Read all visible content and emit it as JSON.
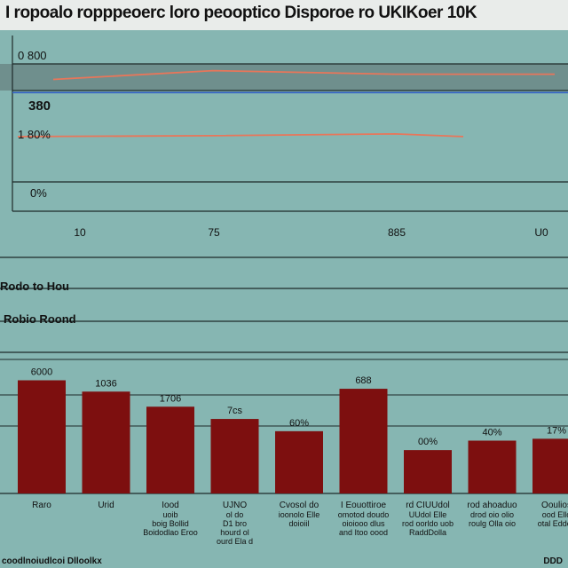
{
  "page_title": "I ropoalo ropppeoerc loro peooptico Disporoe ro UKIKoer 10K",
  "colors": {
    "background": "#86b6b2",
    "title_band": "#e9ecea",
    "top_band": "#6f8f8d",
    "orange_line": "#e8765a",
    "blue_line": "#2f5dc4",
    "bar": "#7d0f0f",
    "grid": "#1e2a2a"
  },
  "chart_data": [
    {
      "type": "line",
      "title": "",
      "x": [
        "10",
        "75",
        "885",
        "U0"
      ],
      "y_tick_labels": [
        "0 800",
        "1 80%",
        "0%"
      ],
      "series": [
        {
          "values": [
            300,
            320,
            312,
            312
          ]
        },
        {
          "values": [
            170,
            172,
            176,
            170
          ]
        }
      ],
      "reference_line": 270,
      "value_label": "380",
      "grid": true
    },
    {
      "type": "bar",
      "section_labels": [
        "Rodo to Hou",
        "Robio Roond"
      ],
      "categories": [
        "Raro",
        "Urid",
        "Iood",
        "UJNO",
        "Cvosol do",
        "I Eouottiroe",
        "rd CIUUdol",
        "rod ahoaduo",
        "Ooulios"
      ],
      "value_labels": [
        "6000",
        "1036",
        "1706",
        "7cs",
        "60%",
        "688",
        "00%",
        "40%",
        "17%"
      ],
      "values": [
        6000,
        5400,
        4600,
        3950,
        3300,
        5550,
        2300,
        2800,
        2900
      ],
      "sublabels": [
        [],
        [],
        [
          "uoib",
          "boig Bollid",
          "Boidodlao Eroo"
        ],
        [
          "ol do",
          "D1 bro",
          "hourd ol",
          "ourd Ela d"
        ],
        [
          "ioonolo Elle",
          "doioiil"
        ],
        [
          "omotod doudo",
          "oioiooo dlus",
          "and Itoo oood"
        ],
        [
          "UUdol Elle",
          "rod oorldo uob",
          "RaddDolla"
        ],
        [
          "drod oio olio",
          "roulg Olla oio"
        ],
        [
          "ood Ello",
          "otal Eddoy"
        ]
      ],
      "grid": true
    }
  ],
  "footer": {
    "left": "coodlnoiudlcoi Dlloolkx",
    "right": "DDD"
  }
}
